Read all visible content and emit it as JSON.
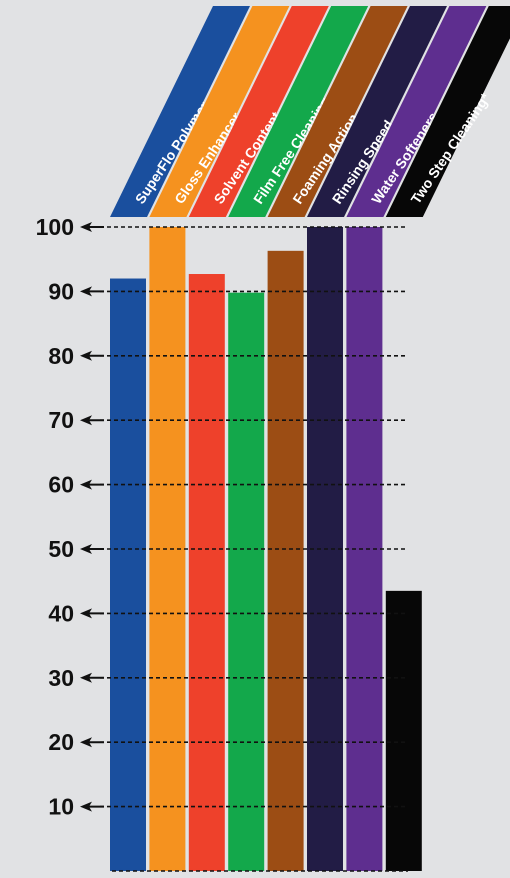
{
  "chart_data": {
    "type": "bar",
    "categories": [
      "SuperFlo Polymer",
      "Gloss Enhancer",
      "Solvent Content",
      "Film Free Cleaning",
      "Foaming Action",
      "Rinsing Speed",
      "Water Softeners",
      "Two Step Cleaning*"
    ],
    "values": [
      92,
      100,
      92.7,
      89.8,
      96.3,
      100,
      100,
      43.5
    ],
    "colors": [
      "#1a4f9e",
      "#f5921f",
      "#ee412b",
      "#13a84b",
      "#9c4d14",
      "#221c45",
      "#5e2e8f",
      "#070707"
    ],
    "ylim": [
      0,
      100
    ],
    "yticks": [
      10,
      20,
      30,
      40,
      50,
      60,
      70,
      80,
      90,
      100
    ],
    "grid": "dashed horizontal",
    "title": "",
    "xlabel": "",
    "ylabel": ""
  }
}
